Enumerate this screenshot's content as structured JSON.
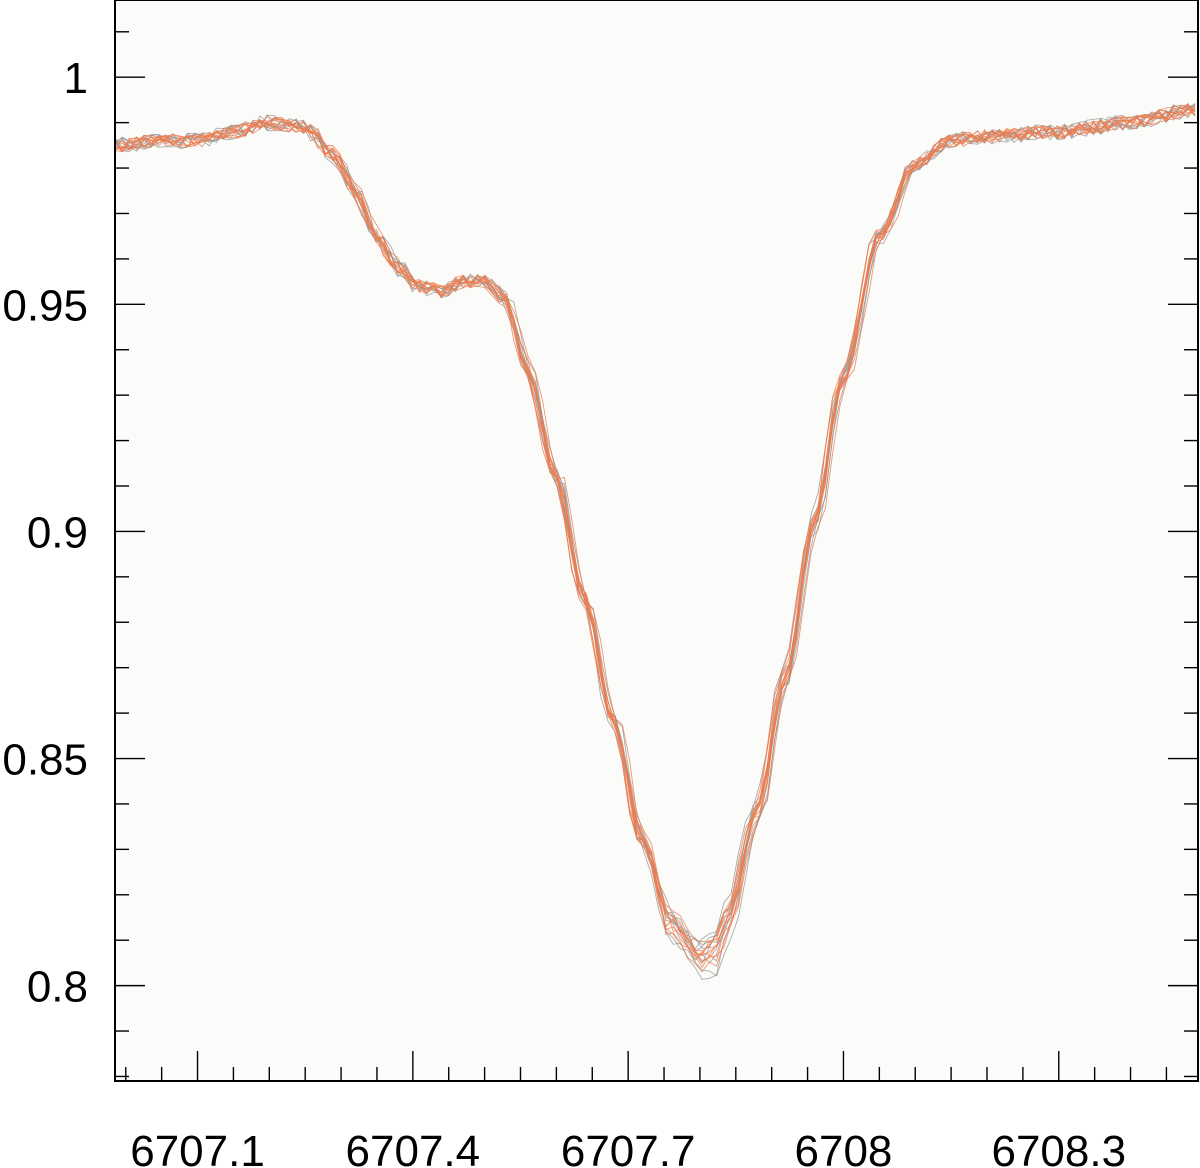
{
  "chart_data": {
    "type": "line",
    "title": "",
    "xlabel": "",
    "ylabel": "",
    "xlim": [
      6706.985,
      6708.494
    ],
    "ylim": [
      0.779,
      1.017
    ],
    "grid": false,
    "background": "#fbfcfa",
    "x_ticks": [
      6707.1,
      6707.4,
      6707.7,
      6708,
      6708.3
    ],
    "x_tick_labels": [
      "6707.1",
      "6707.4",
      "6707.7",
      "6708",
      "6708.3"
    ],
    "x_minor_step": 0.05,
    "y_ticks": [
      0.8,
      0.85,
      0.9,
      0.95,
      1
    ],
    "y_tick_labels": [
      "0.8",
      "0.85",
      "0.9",
      "0.95",
      "1"
    ],
    "y_minor_step": 0.01,
    "colors": {
      "gray_series": "#8c9190",
      "orange_series": "#f07a4c"
    },
    "series_groups": [
      {
        "color": "gray_series",
        "count": 8,
        "line_width": 0.9,
        "opacity": 0.75
      },
      {
        "color": "orange_series",
        "count": 10,
        "line_width": 0.9,
        "opacity": 0.8
      }
    ],
    "base_profile": {
      "x": [
        6706.985,
        6707.05,
        6707.1,
        6707.15,
        6707.2,
        6707.25,
        6707.29,
        6707.32,
        6707.35,
        6707.38,
        6707.41,
        6707.44,
        6707.47,
        6707.5,
        6707.53,
        6707.56,
        6707.6,
        6707.64,
        6707.68,
        6707.72,
        6707.76,
        6707.8,
        6707.82,
        6707.84,
        6707.88,
        6707.92,
        6707.96,
        6708.0,
        6708.05,
        6708.1,
        6708.15,
        6708.2,
        6708.3,
        6708.4,
        6708.494
      ],
      "y": [
        0.985,
        0.986,
        0.986,
        0.988,
        0.99,
        0.989,
        0.983,
        0.975,
        0.965,
        0.958,
        0.954,
        0.953,
        0.955,
        0.955,
        0.951,
        0.936,
        0.912,
        0.885,
        0.858,
        0.832,
        0.813,
        0.806,
        0.807,
        0.815,
        0.838,
        0.868,
        0.902,
        0.934,
        0.965,
        0.981,
        0.986,
        0.987,
        0.988,
        0.99,
        0.993
      ]
    }
  }
}
